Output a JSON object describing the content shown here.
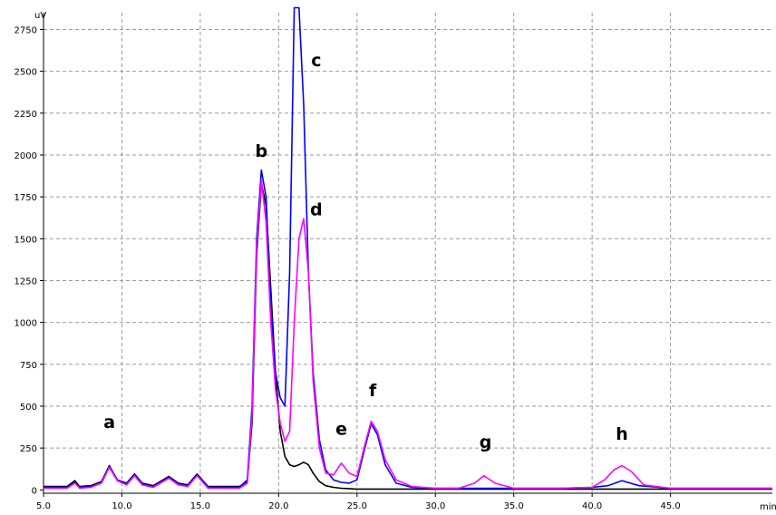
{
  "chart_data": {
    "type": "line",
    "y_unit": "uV",
    "x_unit": "min",
    "xlim": [
      5.0,
      51.5
    ],
    "ylim": [
      -20,
      2850
    ],
    "x_ticks": [
      "5.0",
      "10.0",
      "15.0",
      "20.0",
      "25.0",
      "30.0",
      "35.0",
      "40.0",
      "45.0"
    ],
    "y_ticks": [
      "0",
      "250",
      "500",
      "750",
      "1000",
      "1250",
      "1500",
      "1750",
      "2000",
      "2250",
      "2500",
      "2750"
    ],
    "grid": true,
    "colors": {
      "series_1": "#000000",
      "series_2": "#0000ff",
      "series_3": "#ff00ff"
    },
    "series": [
      {
        "x": [
          5.0,
          6.5,
          7.0,
          7.3,
          8.0,
          8.7,
          9.2,
          9.7,
          10.3,
          10.8,
          11.3,
          12.0,
          13.0,
          13.6,
          14.2,
          14.8,
          15.5,
          16.5,
          17.5,
          18.0,
          18.3,
          18.6,
          18.9,
          19.2,
          19.5,
          19.8,
          20.1,
          20.4,
          20.7,
          21.0,
          21.3,
          21.6,
          21.9,
          22.2,
          22.6,
          23.0,
          23.5,
          24.0,
          25.0,
          26.0,
          28.0,
          30.0,
          35.0,
          40.0,
          45.0,
          51.5
        ],
        "y": [
          20,
          20,
          55,
          20,
          25,
          50,
          145,
          60,
          40,
          95,
          40,
          25,
          80,
          40,
          30,
          95,
          20,
          20,
          20,
          50,
          400,
          1400,
          1830,
          1700,
          1200,
          700,
          350,
          200,
          150,
          140,
          150,
          165,
          150,
          100,
          50,
          25,
          15,
          10,
          5,
          5,
          5,
          5,
          5,
          5,
          5,
          5
        ]
      },
      {
        "x": [
          5.0,
          6.5,
          7.0,
          7.3,
          8.0,
          8.7,
          9.2,
          9.7,
          10.3,
          10.8,
          11.3,
          12.0,
          13.0,
          13.6,
          14.2,
          14.8,
          15.5,
          16.5,
          17.5,
          18.0,
          18.3,
          18.6,
          18.9,
          19.2,
          19.5,
          19.8,
          20.1,
          20.4,
          20.7,
          21.0,
          21.3,
          21.6,
          21.9,
          22.2,
          22.6,
          23.0,
          23.5,
          24.0,
          24.5,
          25.0,
          25.5,
          25.9,
          26.3,
          26.8,
          27.5,
          28.5,
          30.0,
          33.0,
          35.0,
          38.0,
          40.0,
          41.0,
          41.9,
          43.0,
          45.0,
          51.5
        ],
        "y": [
          15,
          15,
          45,
          15,
          20,
          45,
          140,
          60,
          35,
          90,
          35,
          20,
          75,
          35,
          25,
          90,
          15,
          15,
          15,
          60,
          500,
          1500,
          1910,
          1750,
          1100,
          700,
          550,
          500,
          1300,
          2880,
          2880,
          2300,
          1300,
          700,
          300,
          120,
          60,
          45,
          40,
          60,
          250,
          395,
          330,
          150,
          40,
          15,
          10,
          10,
          10,
          10,
          15,
          25,
          55,
          25,
          10,
          10
        ]
      },
      {
        "x": [
          5.0,
          6.5,
          7.0,
          7.3,
          8.0,
          8.7,
          9.2,
          9.7,
          10.3,
          10.8,
          11.3,
          12.0,
          13.0,
          13.6,
          14.2,
          14.8,
          15.5,
          16.5,
          17.5,
          18.0,
          18.3,
          18.6,
          18.9,
          19.2,
          19.5,
          19.8,
          20.1,
          20.4,
          20.7,
          21.0,
          21.3,
          21.6,
          21.9,
          22.2,
          22.6,
          23.0,
          23.5,
          24.0,
          24.5,
          25.0,
          25.5,
          25.9,
          26.3,
          26.8,
          27.5,
          28.5,
          30.0,
          31.5,
          32.5,
          33.1,
          33.8,
          35.0,
          38.0,
          40.0,
          40.8,
          41.4,
          41.9,
          42.5,
          43.3,
          45.0,
          51.5
        ],
        "y": [
          10,
          10,
          40,
          10,
          15,
          40,
          135,
          55,
          30,
          85,
          30,
          15,
          70,
          30,
          20,
          85,
          10,
          10,
          10,
          40,
          450,
          1450,
          1850,
          1600,
          1000,
          600,
          400,
          290,
          350,
          1000,
          1500,
          1620,
          1300,
          650,
          250,
          100,
          90,
          160,
          100,
          80,
          270,
          410,
          350,
          180,
          60,
          20,
          10,
          10,
          40,
          85,
          40,
          10,
          10,
          15,
          60,
          120,
          145,
          110,
          30,
          10,
          10
        ]
      }
    ],
    "annotations": [
      {
        "text": "a",
        "x": 9.2,
        "y": 370
      },
      {
        "text": "b",
        "x": 18.9,
        "y": 1990
      },
      {
        "text": "c",
        "x": 22.4,
        "y": 2530
      },
      {
        "text": "d",
        "x": 22.4,
        "y": 1640
      },
      {
        "text": "e",
        "x": 24.0,
        "y": 330
      },
      {
        "text": "f",
        "x": 26.0,
        "y": 560
      },
      {
        "text": "g",
        "x": 33.2,
        "y": 250
      },
      {
        "text": "h",
        "x": 41.9,
        "y": 300
      }
    ]
  }
}
